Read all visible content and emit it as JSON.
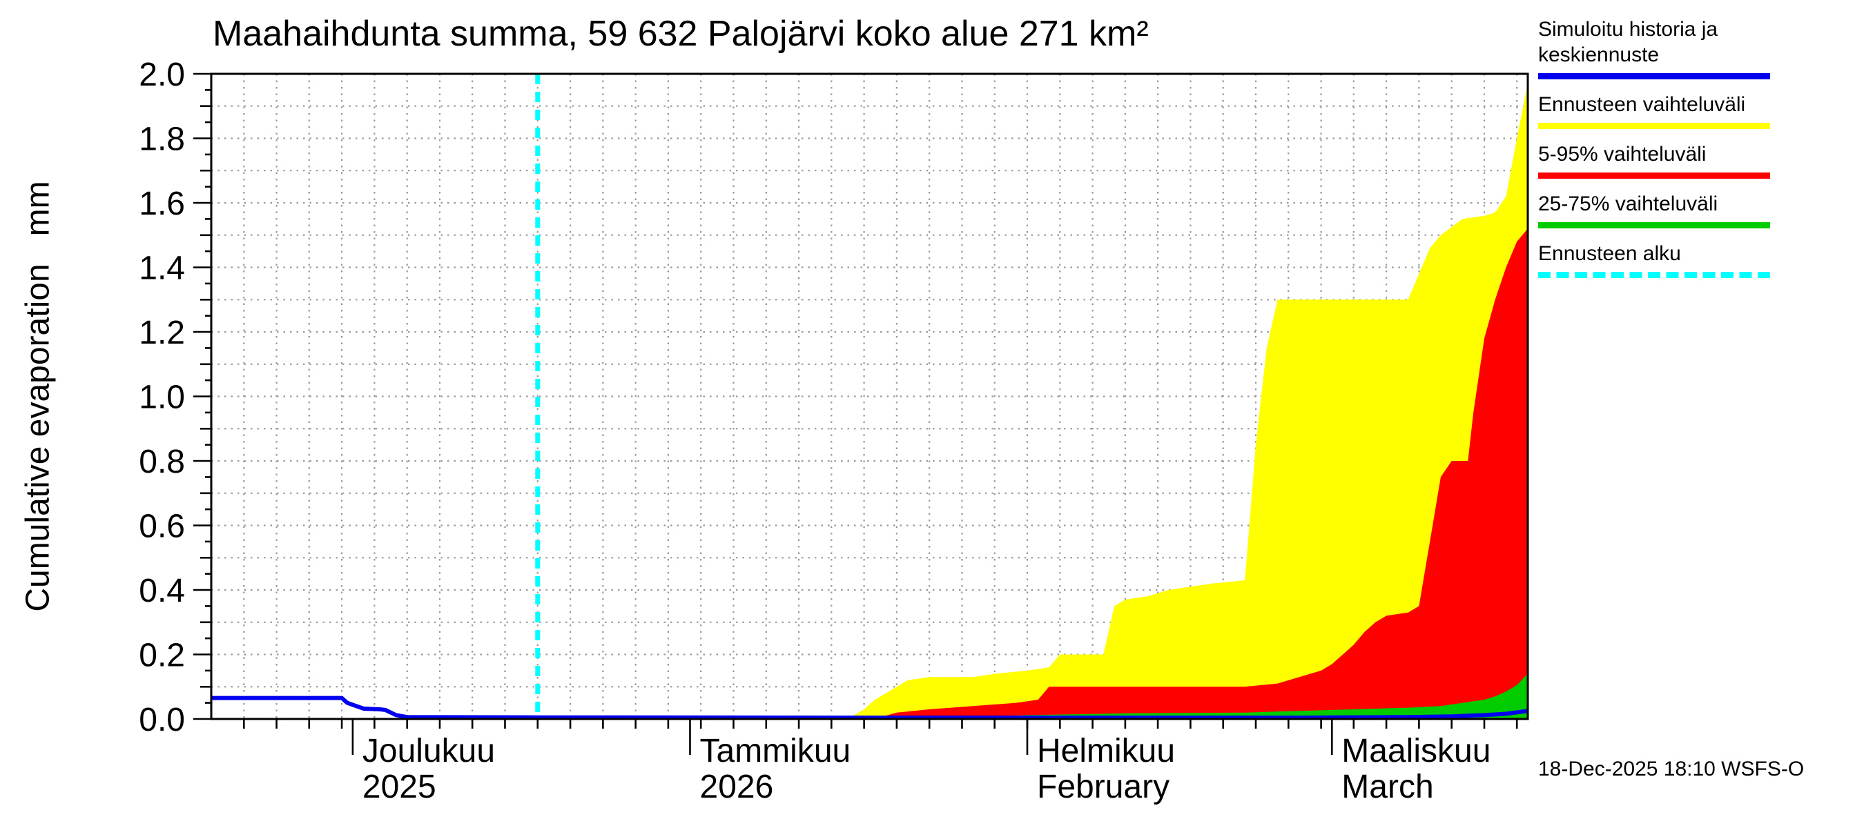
{
  "chart_data": {
    "type": "area",
    "title": "Maahaihdunta summa, 59 632 Palojärvi koko alue 271 km²",
    "ylabel": "Cumulative evaporation   mm",
    "ylim": [
      0,
      2.0
    ],
    "y_grid_step": 0.1,
    "y_label_step": 0.2,
    "y_major_ticks": [
      0.0,
      0.2,
      0.4,
      0.6,
      0.8,
      1.0,
      1.2,
      1.4,
      1.6,
      1.8,
      2.0
    ],
    "x_days_total": 121,
    "x_minor_tick_days": 3,
    "forecast_start_day": 30,
    "grid": true,
    "legend_position": "top-right-outside",
    "months": [
      {
        "day": 13,
        "line1": "Joulukuu",
        "line2": "2025"
      },
      {
        "day": 44,
        "line1": "Tammikuu",
        "line2": "2026"
      },
      {
        "day": 75,
        "line1": "Helmikuu",
        "line2": "February"
      },
      {
        "day": 103,
        "line1": "Maaliskuu",
        "line2": "March"
      }
    ],
    "series": [
      {
        "id": "forecast-range",
        "name": "Ennusteen vaihteluväli",
        "kind": "area",
        "color": "#ffff00",
        "points": [
          [
            0,
            0
          ],
          [
            30,
            0
          ],
          [
            57,
            0
          ],
          [
            59,
            0.01
          ],
          [
            60,
            0.03
          ],
          [
            61,
            0.06
          ],
          [
            62,
            0.08
          ],
          [
            63,
            0.1
          ],
          [
            64,
            0.12
          ],
          [
            66,
            0.13
          ],
          [
            70,
            0.13
          ],
          [
            72,
            0.14
          ],
          [
            75,
            0.15
          ],
          [
            77,
            0.16
          ],
          [
            78,
            0.2
          ],
          [
            82,
            0.2
          ],
          [
            83,
            0.35
          ],
          [
            84,
            0.37
          ],
          [
            86,
            0.38
          ],
          [
            88,
            0.4
          ],
          [
            90,
            0.41
          ],
          [
            92,
            0.42
          ],
          [
            95,
            0.43
          ],
          [
            96,
            0.85
          ],
          [
            97,
            1.15
          ],
          [
            98,
            1.3
          ],
          [
            110,
            1.3
          ],
          [
            111,
            1.38
          ],
          [
            112,
            1.46
          ],
          [
            113,
            1.5
          ],
          [
            115,
            1.55
          ],
          [
            117,
            1.56
          ],
          [
            118,
            1.57
          ],
          [
            119,
            1.62
          ],
          [
            120,
            1.8
          ],
          [
            121,
            1.97
          ]
        ]
      },
      {
        "id": "range-5-95",
        "name": "5-95% vaihteluväli",
        "kind": "area",
        "color": "#ff0000",
        "points": [
          [
            0,
            0
          ],
          [
            30,
            0
          ],
          [
            61,
            0
          ],
          [
            62,
            0.01
          ],
          [
            63,
            0.02
          ],
          [
            66,
            0.03
          ],
          [
            70,
            0.04
          ],
          [
            74,
            0.05
          ],
          [
            76,
            0.06
          ],
          [
            77,
            0.1
          ],
          [
            95,
            0.1
          ],
          [
            98,
            0.11
          ],
          [
            100,
            0.13
          ],
          [
            102,
            0.15
          ],
          [
            103,
            0.17
          ],
          [
            104,
            0.2
          ],
          [
            105,
            0.23
          ],
          [
            106,
            0.27
          ],
          [
            107,
            0.3
          ],
          [
            108,
            0.32
          ],
          [
            110,
            0.33
          ],
          [
            111,
            0.35
          ],
          [
            112,
            0.55
          ],
          [
            113,
            0.75
          ],
          [
            114,
            0.8
          ],
          [
            115.5,
            0.8
          ],
          [
            116,
            0.95
          ],
          [
            117,
            1.18
          ],
          [
            118,
            1.3
          ],
          [
            119,
            1.4
          ],
          [
            120,
            1.48
          ],
          [
            121,
            1.52
          ]
        ]
      },
      {
        "id": "range-25-75",
        "name": "25-75% vaihteluväli",
        "kind": "area",
        "color": "#00cc00",
        "points": [
          [
            0,
            0
          ],
          [
            30,
            0
          ],
          [
            70,
            0
          ],
          [
            72,
            0.008
          ],
          [
            75,
            0.012
          ],
          [
            85,
            0.018
          ],
          [
            95,
            0.02
          ],
          [
            100,
            0.025
          ],
          [
            105,
            0.03
          ],
          [
            110,
            0.035
          ],
          [
            113,
            0.04
          ],
          [
            115,
            0.05
          ],
          [
            117,
            0.06
          ],
          [
            118,
            0.07
          ],
          [
            119,
            0.085
          ],
          [
            120,
            0.105
          ],
          [
            121,
            0.14
          ]
        ]
      },
      {
        "id": "mean",
        "name": "Simuloitu historia ja keskiennuste",
        "kind": "line",
        "color": "#0000ee",
        "points": [
          [
            0,
            0.065
          ],
          [
            12,
            0.065
          ],
          [
            12.5,
            0.05
          ],
          [
            14,
            0.032
          ],
          [
            15.5,
            0.03
          ],
          [
            16,
            0.028
          ],
          [
            17,
            0.012
          ],
          [
            18,
            0.006
          ],
          [
            30,
            0.005
          ],
          [
            60,
            0.004
          ],
          [
            100,
            0.004
          ],
          [
            110,
            0.006
          ],
          [
            114,
            0.008
          ],
          [
            117,
            0.012
          ],
          [
            119,
            0.016
          ],
          [
            121,
            0.025
          ]
        ]
      }
    ]
  },
  "legend": {
    "items": [
      {
        "label": "Simuloitu historia ja keskiennuste",
        "color": "#0000ee",
        "dashed": false
      },
      {
        "label": "Ennusteen vaihteluväli",
        "color": "#ffff00",
        "dashed": false
      },
      {
        "label": "5-95% vaihteluväli",
        "color": "#ff0000",
        "dashed": false
      },
      {
        "label": "25-75% vaihteluväli",
        "color": "#00cc00",
        "dashed": false
      },
      {
        "label": "Ennusteen alku",
        "color": "#00ffff",
        "dashed": true
      }
    ]
  },
  "footer": {
    "timestamp": "18-Dec-2025 18:10 WSFS-O"
  }
}
